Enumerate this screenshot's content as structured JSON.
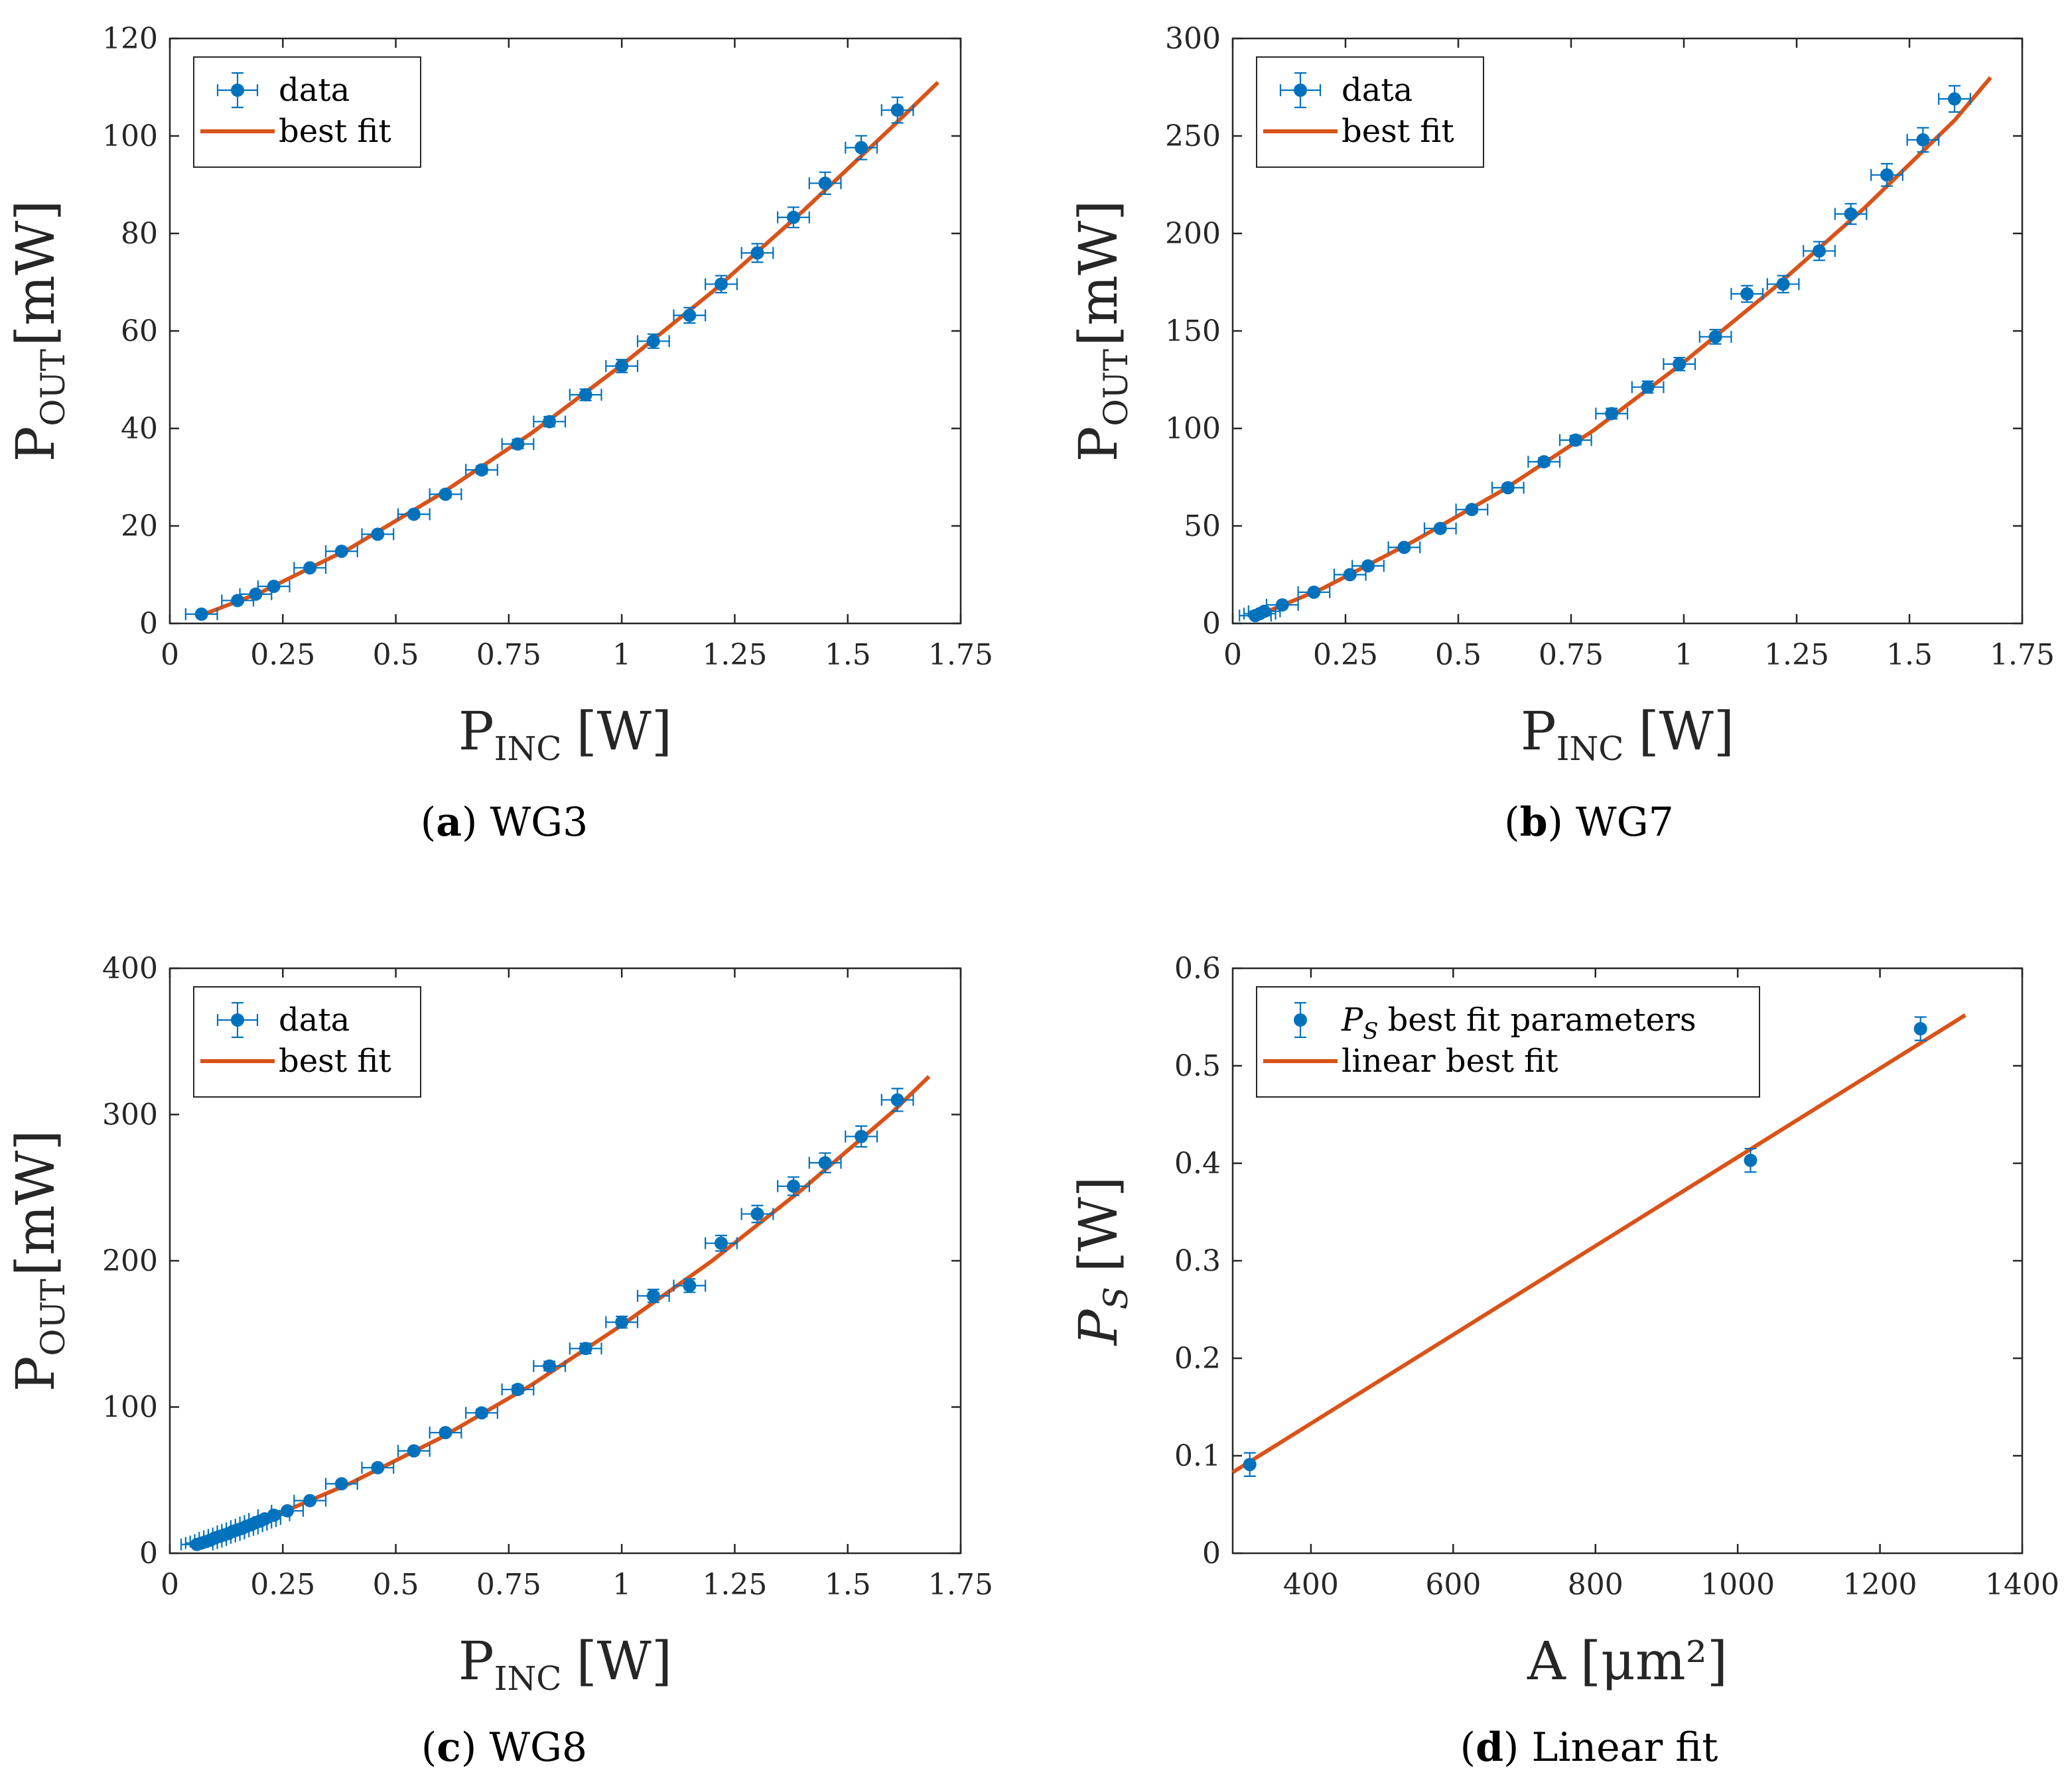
{
  "colors": {
    "data": "#0072BD",
    "fit": "#D95319",
    "axis": "#262626"
  },
  "chart_data": [
    {
      "type": "scatter",
      "caption": {
        "letter": "a",
        "text": "WG3"
      },
      "xlabel": {
        "main": "P",
        "sub": "INC",
        "unit": "[W]"
      },
      "ylabel": {
        "main": "P",
        "sub": "OUT",
        "unit": "[mW]"
      },
      "xlim": [
        0,
        1.75
      ],
      "ylim": [
        0,
        120
      ],
      "xticks": [
        0,
        0.25,
        0.5,
        0.75,
        1,
        1.25,
        1.5,
        1.75
      ],
      "xtick_labels": [
        "0",
        "0.25",
        "0.5",
        "0.75",
        "1",
        "1.25",
        "1.5",
        "1.75"
      ],
      "yticks": [
        0,
        20,
        40,
        60,
        80,
        100,
        120
      ],
      "ytick_labels": [
        "0",
        "20",
        "40",
        "60",
        "80",
        "100",
        "120"
      ],
      "legend": {
        "position": "top-left",
        "data_label": "data",
        "fit_label": "best fit"
      },
      "data": {
        "x": [
          0.07,
          0.15,
          0.19,
          0.23,
          0.31,
          0.38,
          0.46,
          0.54,
          0.61,
          0.69,
          0.77,
          0.84,
          0.92,
          1.0,
          1.07,
          1.15,
          1.22,
          1.3,
          1.38,
          1.45,
          1.53,
          1.61
        ],
        "y": [
          1.9,
          4.7,
          6.0,
          7.6,
          11.4,
          14.8,
          18.3,
          22.4,
          26.5,
          31.5,
          36.8,
          41.4,
          46.9,
          52.8,
          57.9,
          63.2,
          69.6,
          76.0,
          83.3,
          90.3,
          97.6,
          105.3
        ],
        "xerr": 0.035,
        "yerr_frac": 0.025
      },
      "fit": {
        "x": [
          0.07,
          0.2,
          0.4,
          0.6,
          0.8,
          1.0,
          1.2,
          1.4,
          1.6,
          1.7
        ],
        "y": [
          1.7,
          6.3,
          15.5,
          26.6,
          39.0,
          53.0,
          68.0,
          84.5,
          102.0,
          111.0
        ]
      }
    },
    {
      "type": "scatter",
      "caption": {
        "letter": "b",
        "text": "WG7"
      },
      "xlabel": {
        "main": "P",
        "sub": "INC",
        "unit": "[W]"
      },
      "ylabel": {
        "main": "P",
        "sub": "OUT",
        "unit": "[mW]"
      },
      "xlim": [
        0,
        1.75
      ],
      "ylim": [
        0,
        300
      ],
      "xticks": [
        0,
        0.25,
        0.5,
        0.75,
        1,
        1.25,
        1.5,
        1.75
      ],
      "xtick_labels": [
        "0",
        "0.25",
        "0.5",
        "0.75",
        "1",
        "1.25",
        "1.5",
        "1.75"
      ],
      "yticks": [
        0,
        50,
        100,
        150,
        200,
        250,
        300
      ],
      "ytick_labels": [
        "0",
        "50",
        "100",
        "150",
        "200",
        "250",
        "300"
      ],
      "legend": {
        "position": "top-left",
        "data_label": "data",
        "fit_label": "best fit"
      },
      "data": {
        "x": [
          0.05,
          0.06,
          0.07,
          0.11,
          0.18,
          0.26,
          0.3,
          0.38,
          0.46,
          0.53,
          0.61,
          0.69,
          0.76,
          0.84,
          0.92,
          0.99,
          1.07,
          1.14,
          1.22,
          1.3,
          1.37,
          1.45,
          1.53,
          1.6
        ],
        "y": [
          4.0,
          5.0,
          6.2,
          9.5,
          16.0,
          25.0,
          29.5,
          39.0,
          48.7,
          58.4,
          69.6,
          82.9,
          94.0,
          107.6,
          121.2,
          133.0,
          147.0,
          169.0,
          174.0,
          191.0,
          210.0,
          230.0,
          248.0,
          269.0
        ],
        "xerr": 0.035,
        "yerr_frac": 0.025
      },
      "fit": {
        "x": [
          0.05,
          0.2,
          0.4,
          0.6,
          0.8,
          1.0,
          1.2,
          1.4,
          1.6,
          1.68
        ],
        "y": [
          3.5,
          18.0,
          42.0,
          68.5,
          99.0,
          134.0,
          172.0,
          213.0,
          258.0,
          280.0
        ]
      }
    },
    {
      "type": "scatter",
      "caption": {
        "letter": "c",
        "text": "WG8"
      },
      "xlabel": {
        "main": "P",
        "sub": "INC",
        "unit": "[W]"
      },
      "ylabel": {
        "main": "P",
        "sub": "OUT",
        "unit": "[mW]"
      },
      "xlim": [
        0,
        1.75
      ],
      "ylim": [
        0,
        400
      ],
      "xticks": [
        0,
        0.25,
        0.5,
        0.75,
        1,
        1.25,
        1.5,
        1.75
      ],
      "xtick_labels": [
        "0",
        "0.25",
        "0.5",
        "0.75",
        "1",
        "1.25",
        "1.5",
        "1.75"
      ],
      "yticks": [
        0,
        100,
        200,
        300,
        400
      ],
      "ytick_labels": [
        "0",
        "100",
        "200",
        "300",
        "400"
      ],
      "legend": {
        "position": "top-left",
        "data_label": "data",
        "fit_label": "best fit"
      },
      "data": {
        "x": [
          0.06,
          0.07,
          0.08,
          0.09,
          0.1,
          0.11,
          0.12,
          0.13,
          0.14,
          0.15,
          0.16,
          0.17,
          0.18,
          0.19,
          0.2,
          0.21,
          0.23,
          0.26,
          0.31,
          0.38,
          0.46,
          0.54,
          0.61,
          0.69,
          0.77,
          0.84,
          0.92,
          1.0,
          1.07,
          1.15,
          1.22,
          1.3,
          1.38,
          1.45,
          1.53,
          1.61
        ],
        "y": [
          6.0,
          7.0,
          8.0,
          9.0,
          10.5,
          11.5,
          12.5,
          13.5,
          15.0,
          16.0,
          17.0,
          18.5,
          19.5,
          21.0,
          22.0,
          23.5,
          26.0,
          29.0,
          36.0,
          47.5,
          58.5,
          70.0,
          82.5,
          96.0,
          112.0,
          128.0,
          140.0,
          158.0,
          176.0,
          183.0,
          212.0,
          232.0,
          251.0,
          267.0,
          285.0,
          310.0
        ],
        "xerr": 0.035,
        "yerr_frac": 0.025
      },
      "fit": {
        "x": [
          0.06,
          0.2,
          0.4,
          0.6,
          0.8,
          1.0,
          1.2,
          1.4,
          1.6,
          1.68
        ],
        "y": [
          5.5,
          21.5,
          48.0,
          79.0,
          115.0,
          156.0,
          200.0,
          249.0,
          302.0,
          326.0
        ]
      }
    },
    {
      "type": "scatter",
      "caption": {
        "letter": "d",
        "text": "Linear fit"
      },
      "xlabel": {
        "main": "A",
        "sub": "",
        "unit": "[μm²]"
      },
      "ylabel": {
        "main": "P",
        "sub": "S",
        "unit": "[W]"
      },
      "xlim": [
        290,
        1400
      ],
      "ylim": [
        0,
        0.6
      ],
      "xticks": [
        400,
        600,
        800,
        1000,
        1200,
        1400
      ],
      "xtick_labels": [
        "400",
        "600",
        "800",
        "1000",
        "1200",
        "1400"
      ],
      "yticks": [
        0,
        0.1,
        0.2,
        0.3,
        0.4,
        0.5,
        0.6
      ],
      "ytick_labels": [
        "0",
        "0.1",
        "0.2",
        "0.3",
        "0.4",
        "0.5",
        "0.6"
      ],
      "legend": {
        "position": "top-left",
        "data_label": "P_S best fit parameters",
        "fit_label": "linear best fit"
      },
      "data": {
        "x": [
          314,
          1018,
          1257
        ],
        "y": [
          0.091,
          0.403,
          0.538
        ],
        "xerr": 0,
        "yerr_abs": 0.012
      },
      "fit": {
        "x": [
          290,
          1320
        ],
        "y": [
          0.083,
          0.552
        ]
      }
    }
  ]
}
